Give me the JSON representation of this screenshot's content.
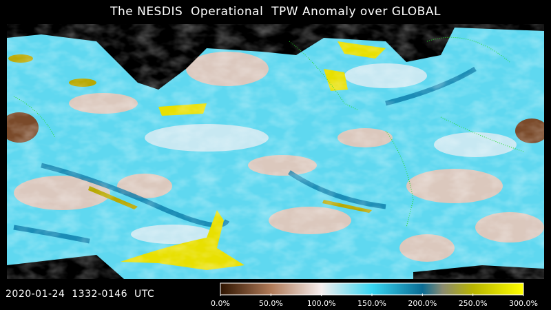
{
  "header": {
    "title": "The NESDIS  Operational  TPW Anomaly over GLOBAL"
  },
  "footer": {
    "timestamp": "2020-01-24  1332-0146  UTC"
  },
  "colorbar": {
    "lim": [
      0,
      300
    ],
    "ticks": [
      {
        "value": 0,
        "label": "0.0%"
      },
      {
        "value": 50,
        "label": "50.0%"
      },
      {
        "value": 100,
        "label": "100.0%"
      },
      {
        "value": 150,
        "label": "150.0%"
      },
      {
        "value": 200,
        "label": "200.0%"
      },
      {
        "value": 250,
        "label": "250.0%"
      },
      {
        "value": 300,
        "label": "300.0%"
      }
    ],
    "stops": [
      {
        "value": 0,
        "color": "#2e1400"
      },
      {
        "value": 50,
        "color": "#b07a58"
      },
      {
        "value": 100,
        "color": "#f6eeee"
      },
      {
        "value": 150,
        "color": "#38d6f2"
      },
      {
        "value": 200,
        "color": "#0a6c94"
      },
      {
        "value": 220,
        "color": "#8a8a70"
      },
      {
        "value": 250,
        "color": "#b8b400"
      },
      {
        "value": 300,
        "color": "#ffff00"
      }
    ]
  }
}
